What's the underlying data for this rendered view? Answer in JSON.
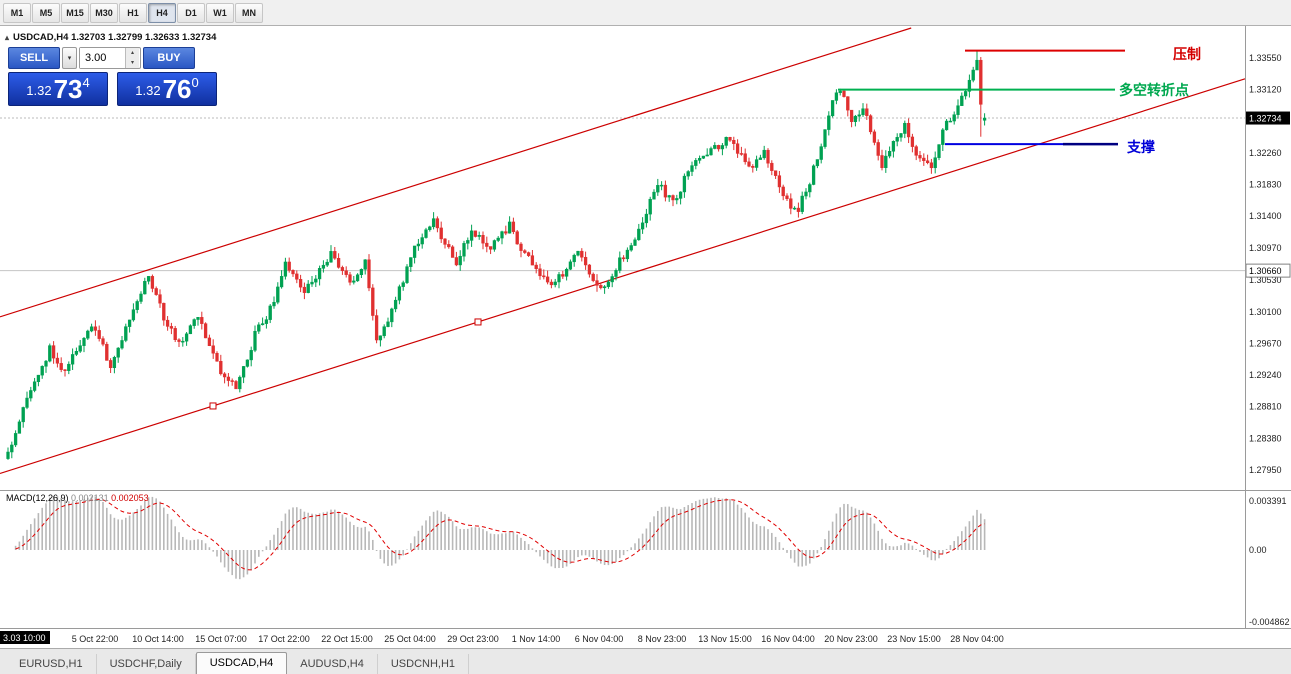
{
  "toolbar": {
    "timeframes": [
      "M1",
      "M5",
      "M15",
      "M30",
      "H1",
      "H4",
      "D1",
      "W1",
      "MN"
    ],
    "active": "H4"
  },
  "chart_header": {
    "title": "USDCAD,H4 1.32703 1.32799 1.32633 1.32734"
  },
  "one_click": {
    "sell_label": "SELL",
    "buy_label": "BUY",
    "volume": "3.00",
    "bid": {
      "big": "1.32",
      "pips": "73",
      "frac": "4"
    },
    "ask": {
      "big": "1.32",
      "pips": "76",
      "frac": "0"
    }
  },
  "annotations": {
    "resistance": "压制",
    "pivot": "多空转折点",
    "support": "支撑"
  },
  "price_axis": {
    "labels": [
      "1.33550",
      "1.33120",
      "1.32260",
      "1.31830",
      "1.31400",
      "1.30970",
      "1.30530",
      "1.30100",
      "1.29670",
      "1.29240",
      "1.28810",
      "1.28380",
      "1.27950"
    ],
    "current": "1.32734",
    "marked": "1.30660"
  },
  "time_axis": {
    "crosshair": "3.03 10:00",
    "labels": [
      "5 Oct 22:00",
      "10 Oct 14:00",
      "15 Oct 07:00",
      "17 Oct 22:00",
      "22 Oct 15:00",
      "25 Oct 04:00",
      "29 Oct 23:00",
      "1 Nov 14:00",
      "6 Nov 04:00",
      "8 Nov 23:00",
      "13 Nov 15:00",
      "16 Nov 04:00",
      "20 Nov 23:00",
      "23 Nov 15:00",
      "28 Nov 04:00"
    ]
  },
  "macd_panel": {
    "title": "MACD(12,26,9)",
    "value_main": "0.002131",
    "value_signal": "0.002053",
    "axis_max": "0.003391",
    "axis_zero": "0.00",
    "axis_min": "-0.004862"
  },
  "tabs": {
    "items": [
      "EURUSD,H1",
      "USDCHF,Daily",
      "USDCAD,H4",
      "AUDUSD,H4",
      "USDCNH,H1"
    ],
    "active": "USDCAD,H4"
  },
  "colors": {
    "bull": "#00a152",
    "bear": "#e03030",
    "channel": "#cc0000",
    "resistance": "#dd0000",
    "pivot": "#00b050",
    "support": "#0000e0",
    "support_dark": "#000080",
    "macd_hist": "#b8b8b8",
    "macd_signal": "#e00000"
  },
  "chart_data": {
    "type": "candlestick",
    "symbol": "USDCAD",
    "timeframe": "H4",
    "current": {
      "open": 1.32703,
      "high": 1.32799,
      "low": 1.32633,
      "close": 1.32734,
      "bid": 1.32734,
      "ask": 1.3276
    },
    "y_axis_range": [
      1.27775,
      1.3389
    ],
    "price_path": [
      [
        0,
        1.2815
      ],
      [
        6,
        1.2905
      ],
      [
        11,
        1.2958
      ],
      [
        15,
        1.293
      ],
      [
        22,
        1.2992
      ],
      [
        27,
        1.294
      ],
      [
        33,
        1.301
      ],
      [
        37,
        1.3062
      ],
      [
        41,
        1.3
      ],
      [
        45,
        1.2965
      ],
      [
        50,
        1.3002
      ],
      [
        56,
        1.293
      ],
      [
        60,
        1.2906
      ],
      [
        65,
        1.2978
      ],
      [
        69,
        1.3012
      ],
      [
        73,
        1.3078
      ],
      [
        78,
        1.3035
      ],
      [
        85,
        1.3088
      ],
      [
        90,
        1.305
      ],
      [
        94,
        1.3078
      ],
      [
        97,
        1.2968
      ],
      [
        100,
        1.2992
      ],
      [
        106,
        1.3088
      ],
      [
        112,
        1.3132
      ],
      [
        118,
        1.308
      ],
      [
        122,
        1.3122
      ],
      [
        127,
        1.31
      ],
      [
        132,
        1.3126
      ],
      [
        138,
        1.3072
      ],
      [
        143,
        1.3042
      ],
      [
        147,
        1.3072
      ],
      [
        150,
        1.3092
      ],
      [
        154,
        1.3052
      ],
      [
        157,
        1.304
      ],
      [
        161,
        1.3078
      ],
      [
        166,
        1.3122
      ],
      [
        171,
        1.3182
      ],
      [
        175,
        1.3158
      ],
      [
        181,
        1.3218
      ],
      [
        186,
        1.3232
      ],
      [
        190,
        1.3248
      ],
      [
        195,
        1.3206
      ],
      [
        199,
        1.3232
      ],
      [
        204,
        1.3162
      ],
      [
        208,
        1.3152
      ],
      [
        212,
        1.3202
      ],
      [
        218,
        1.3312
      ],
      [
        220,
        1.3296
      ],
      [
        222,
        1.3266
      ],
      [
        225,
        1.3292
      ],
      [
        230,
        1.3202
      ],
      [
        233,
        1.3246
      ],
      [
        236,
        1.3262
      ],
      [
        240,
        1.3218
      ],
      [
        243,
        1.3202
      ],
      [
        246,
        1.3256
      ],
      [
        250,
        1.3292
      ],
      [
        252,
        1.3312
      ],
      [
        255,
        1.3352
      ],
      [
        256,
        1.3292
      ],
      [
        257,
        1.32734
      ]
    ],
    "levels": [
      {
        "name": "resistance",
        "price": 1.3365,
        "label": "压制"
      },
      {
        "name": "pivot",
        "price": 1.3312,
        "label": "多空转折点"
      },
      {
        "name": "support",
        "price": 1.3238,
        "label": "支撑"
      }
    ],
    "channel": {
      "lower_anchors": [
        [
          0,
          1.27937
        ],
        [
          257,
          1.32145
        ]
      ],
      "upper_offset": 0.02129
    },
    "marked_price": 1.3066,
    "macd": {
      "fast": 12,
      "slow": 26,
      "signal": 9
    }
  }
}
